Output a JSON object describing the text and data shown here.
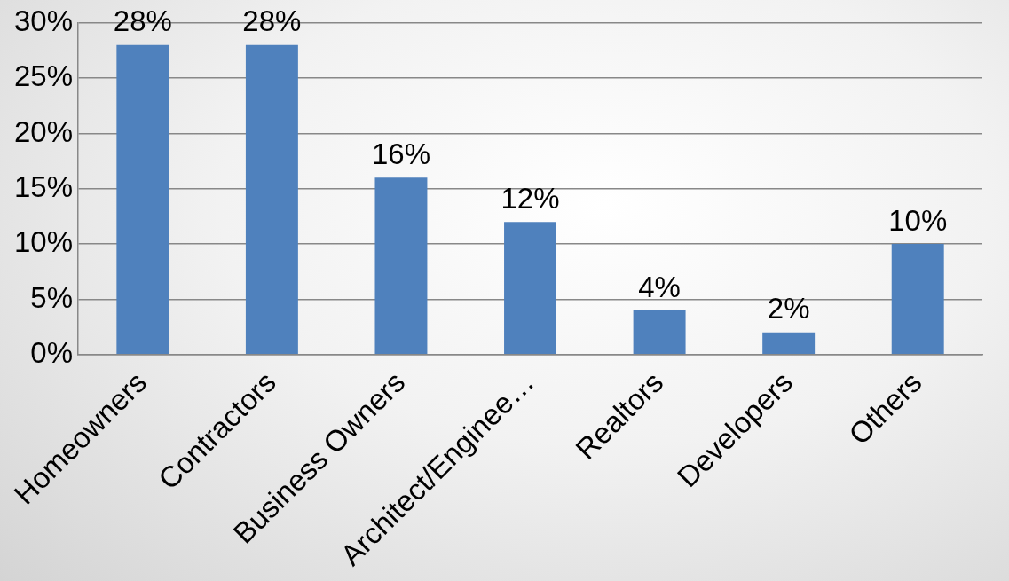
{
  "chart_data": {
    "type": "bar",
    "categories": [
      "Homeowners",
      "Contractors",
      "Business Owners",
      "Architect/Enginee…",
      "Realtors",
      "Developers",
      "Others"
    ],
    "values": [
      28,
      28,
      16,
      12,
      4,
      2,
      10
    ],
    "value_labels": [
      "28%",
      "28%",
      "16%",
      "12%",
      "4%",
      "2%",
      "10%"
    ],
    "color": "#4f81bd",
    "ylim": [
      0,
      30
    ],
    "yticks": [
      {
        "value": 0,
        "label": "0%"
      },
      {
        "value": 5,
        "label": "5%"
      },
      {
        "value": 10,
        "label": "10%"
      },
      {
        "value": 15,
        "label": "15%"
      },
      {
        "value": 20,
        "label": "20%"
      },
      {
        "value": 25,
        "label": "25%"
      },
      {
        "value": 30,
        "label": "30%"
      }
    ],
    "grid": "y"
  }
}
